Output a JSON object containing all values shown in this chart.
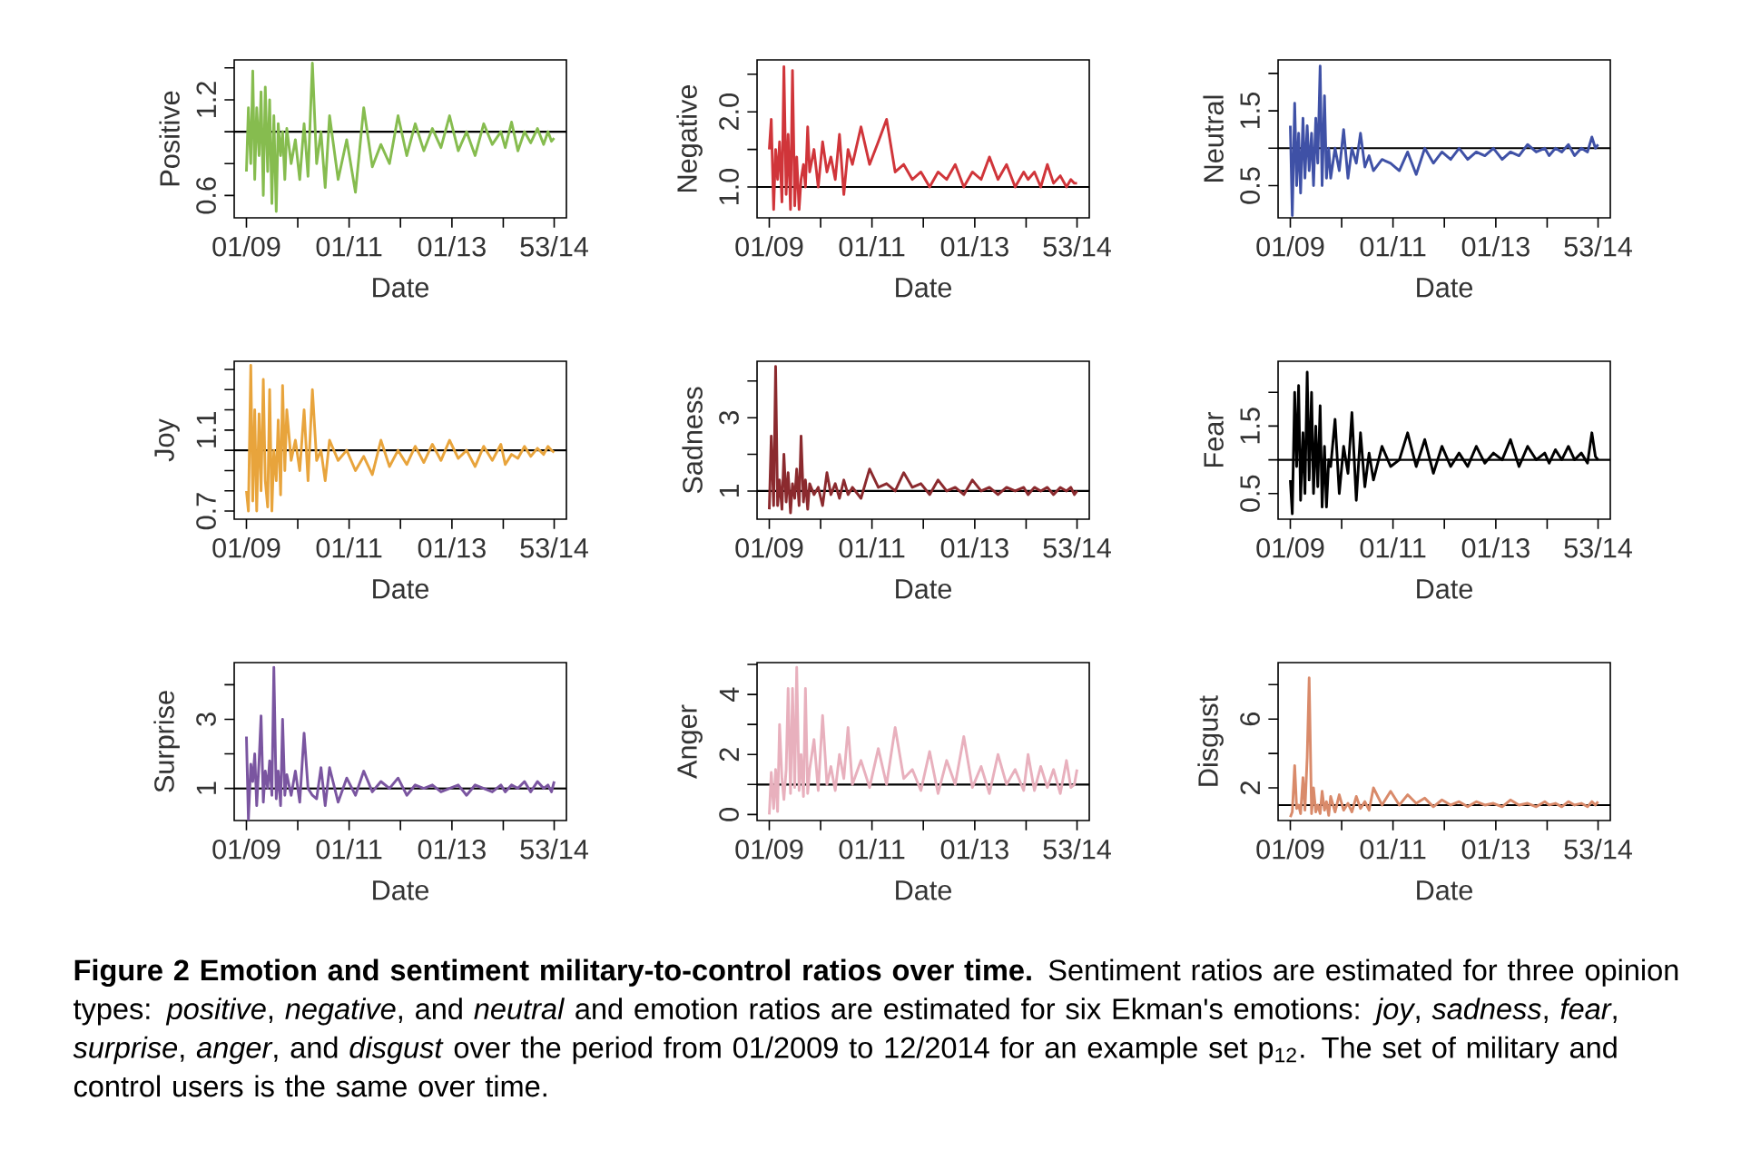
{
  "chart_data": [
    {
      "type": "line",
      "xlabel": "Date",
      "ylabel": "Positive",
      "color": "#86bc4f",
      "xlim": [
        "2008-10-06",
        "2015-03-26"
      ],
      "xticks": [
        {
          "value": "2009-01-01",
          "label": "01/09"
        },
        {
          "value": "2010-01-01",
          "label": null
        },
        {
          "value": "2011-01-01",
          "label": "01/11"
        },
        {
          "value": "2012-01-01",
          "label": null
        },
        {
          "value": "2013-01-01",
          "label": "01/13"
        },
        {
          "value": "2014-01-01",
          "label": null
        },
        {
          "value": "2014-12-29",
          "label": "53/14"
        }
      ],
      "ylim": [
        0.46,
        1.45
      ],
      "yticks": [
        0.6,
        {
          "value": 0.8,
          "label": null
        },
        {
          "value": 1.0,
          "label": null
        },
        1.2,
        {
          "value": 1.4,
          "label": null
        }
      ],
      "ref_lines": [
        {
          "axis": "y",
          "value": 1,
          "color": "#000000"
        }
      ],
      "x": [
        "2009-01-01",
        "2009-01-15",
        "2009-02-01",
        "2009-02-15",
        "2009-03-01",
        "2009-03-15",
        "2009-04-01",
        "2009-04-15",
        "2009-05-01",
        "2009-05-15",
        "2009-06-01",
        "2009-06-15",
        "2009-07-01",
        "2009-07-15",
        "2009-08-01",
        "2009-08-15",
        "2009-09-01",
        "2009-09-15",
        "2009-10-01",
        "2009-10-15",
        "2009-11-15",
        "2009-12-15",
        "2010-01-15",
        "2010-02-15",
        "2010-03-15",
        "2010-04-15",
        "2010-05-15",
        "2010-06-15",
        "2010-07-15",
        "2010-08-15",
        "2010-10-15",
        "2010-12-15",
        "2011-02-15",
        "2011-04-15",
        "2011-06-15",
        "2011-08-15",
        "2011-10-15",
        "2011-12-15",
        "2012-02-15",
        "2012-04-15",
        "2012-06-15",
        "2012-08-15",
        "2012-10-15",
        "2012-12-15",
        "2013-02-15",
        "2013-04-15",
        "2013-06-15",
        "2013-08-15",
        "2013-10-15",
        "2013-12-15",
        "2014-01-15",
        "2014-03-01",
        "2014-04-15",
        "2014-06-01",
        "2014-07-15",
        "2014-09-01",
        "2014-10-15",
        "2014-11-15",
        "2014-12-10",
        "2014-12-29"
      ],
      "values": [
        0.75,
        1.15,
        0.8,
        1.38,
        0.7,
        1.15,
        0.85,
        1.25,
        0.6,
        1.28,
        0.75,
        1.2,
        0.55,
        1.1,
        0.5,
        1.05,
        0.85,
        1.0,
        0.7,
        1.02,
        0.8,
        0.95,
        0.7,
        1.05,
        0.72,
        1.43,
        0.8,
        1.0,
        0.65,
        1.1,
        0.7,
        0.95,
        0.62,
        1.15,
        0.78,
        0.92,
        0.8,
        1.1,
        0.85,
        1.05,
        0.88,
        1.02,
        0.9,
        1.1,
        0.88,
        1.0,
        0.85,
        1.05,
        0.92,
        1.0,
        0.9,
        1.06,
        0.88,
        1.0,
        0.93,
        1.02,
        0.92,
        1.0,
        0.94,
        0.96
      ]
    },
    {
      "type": "line",
      "xlabel": "Date",
      "ylabel": "Negative",
      "color": "#d0353a",
      "xlim": [
        "2008-10-06",
        "2015-03-26"
      ],
      "xticks": [
        {
          "value": "2009-01-01",
          "label": "01/09"
        },
        {
          "value": "2010-01-01",
          "label": null
        },
        {
          "value": "2011-01-01",
          "label": "01/11"
        },
        {
          "value": "2012-01-01",
          "label": null
        },
        {
          "value": "2013-01-01",
          "label": "01/13"
        },
        {
          "value": "2014-01-01",
          "label": null
        },
        {
          "value": "2014-12-29",
          "label": "53/14"
        }
      ],
      "ylim": [
        0.59,
        2.69
      ],
      "yticks": [
        {
          "value": 1.0,
          "label": "1.0"
        },
        {
          "value": 1.5,
          "label": null
        },
        {
          "value": 2.0,
          "label": "2.0"
        },
        {
          "value": 2.5,
          "label": null
        }
      ],
      "ref_lines": [
        {
          "axis": "y",
          "value": 1,
          "color": "#000000"
        }
      ],
      "x": [
        "2009-01-01",
        "2009-01-15",
        "2009-02-01",
        "2009-02-15",
        "2009-03-01",
        "2009-03-15",
        "2009-04-01",
        "2009-04-15",
        "2009-05-01",
        "2009-05-15",
        "2009-06-01",
        "2009-06-15",
        "2009-07-01",
        "2009-07-15",
        "2009-08-01",
        "2009-08-15",
        "2009-09-01",
        "2009-09-15",
        "2009-10-01",
        "2009-10-15",
        "2009-11-15",
        "2009-12-15",
        "2010-01-15",
        "2010-02-15",
        "2010-03-15",
        "2010-04-15",
        "2010-05-15",
        "2010-06-15",
        "2010-07-15",
        "2010-08-15",
        "2010-10-15",
        "2010-12-15",
        "2011-02-15",
        "2011-04-15",
        "2011-06-15",
        "2011-08-15",
        "2011-10-15",
        "2011-12-15",
        "2012-02-15",
        "2012-04-15",
        "2012-06-15",
        "2012-08-15",
        "2012-10-15",
        "2012-12-15",
        "2013-02-15",
        "2013-04-15",
        "2013-06-15",
        "2013-08-15",
        "2013-10-15",
        "2013-12-15",
        "2014-01-15",
        "2014-03-01",
        "2014-04-15",
        "2014-06-01",
        "2014-07-15",
        "2014-09-01",
        "2014-10-15",
        "2014-11-15",
        "2014-12-10",
        "2014-12-29"
      ],
      "values": [
        1.5,
        1.9,
        0.7,
        1.5,
        1.1,
        1.6,
        0.8,
        2.6,
        0.9,
        1.7,
        0.7,
        2.55,
        0.75,
        1.4,
        0.7,
        1.1,
        1.3,
        1.0,
        1.8,
        1.2,
        1.5,
        1.0,
        1.6,
        1.2,
        1.4,
        1.1,
        1.7,
        0.9,
        1.5,
        1.3,
        1.8,
        1.3,
        1.6,
        1.9,
        1.2,
        1.3,
        1.1,
        1.2,
        1.0,
        1.2,
        1.1,
        1.3,
        1.0,
        1.2,
        1.1,
        1.4,
        1.1,
        1.3,
        1.0,
        1.2,
        1.1,
        1.2,
        1.0,
        1.3,
        1.05,
        1.15,
        1.0,
        1.1,
        1.05,
        1.05
      ]
    },
    {
      "type": "line",
      "xlabel": "Date",
      "ylabel": "Neutral",
      "color": "#3f51a6",
      "xlim": [
        "2008-10-06",
        "2015-03-26"
      ],
      "xticks": [
        {
          "value": "2009-01-01",
          "label": "01/09"
        },
        {
          "value": "2010-01-01",
          "label": null
        },
        {
          "value": "2011-01-01",
          "label": "01/11"
        },
        {
          "value": "2012-01-01",
          "label": null
        },
        {
          "value": "2013-01-01",
          "label": "01/13"
        },
        {
          "value": "2014-01-01",
          "label": null
        },
        {
          "value": "2014-12-29",
          "label": "53/14"
        }
      ],
      "ylim": [
        0.07,
        2.18
      ],
      "yticks": [
        0.5,
        {
          "value": 1.0,
          "label": null
        },
        1.5,
        {
          "value": 2.0,
          "label": null
        }
      ],
      "ref_lines": [
        {
          "axis": "y",
          "value": 1,
          "color": "#000000"
        }
      ],
      "x": [
        "2009-01-01",
        "2009-01-15",
        "2009-02-01",
        "2009-02-15",
        "2009-03-01",
        "2009-03-15",
        "2009-04-01",
        "2009-04-15",
        "2009-05-01",
        "2009-05-15",
        "2009-06-01",
        "2009-06-15",
        "2009-07-01",
        "2009-07-15",
        "2009-08-01",
        "2009-08-15",
        "2009-09-01",
        "2009-09-15",
        "2009-10-01",
        "2009-10-15",
        "2009-11-15",
        "2009-12-15",
        "2010-01-15",
        "2010-02-15",
        "2010-03-15",
        "2010-04-15",
        "2010-05-15",
        "2010-06-15",
        "2010-07-15",
        "2010-08-15",
        "2010-10-15",
        "2010-12-15",
        "2011-02-15",
        "2011-04-15",
        "2011-06-15",
        "2011-08-15",
        "2011-10-15",
        "2011-12-15",
        "2012-02-15",
        "2012-04-15",
        "2012-06-15",
        "2012-08-15",
        "2012-10-15",
        "2012-12-15",
        "2013-02-15",
        "2013-04-15",
        "2013-06-15",
        "2013-08-15",
        "2013-10-15",
        "2013-12-15",
        "2014-01-15",
        "2014-03-01",
        "2014-04-15",
        "2014-06-01",
        "2014-07-15",
        "2014-09-01",
        "2014-10-15",
        "2014-11-15",
        "2014-12-10",
        "2014-12-29"
      ],
      "values": [
        1.3,
        0.1,
        1.6,
        0.5,
        1.2,
        0.4,
        1.4,
        0.6,
        1.3,
        0.7,
        1.2,
        0.5,
        1.4,
        0.8,
        2.1,
        0.5,
        1.7,
        0.6,
        1.0,
        0.6,
        1.0,
        0.7,
        1.25,
        0.6,
        1.0,
        0.8,
        1.2,
        0.75,
        0.9,
        0.7,
        0.85,
        0.8,
        0.7,
        0.95,
        0.65,
        1.0,
        0.8,
        0.95,
        0.85,
        1.0,
        0.85,
        0.95,
        0.9,
        1.0,
        0.85,
        0.95,
        0.9,
        1.05,
        0.95,
        1.0,
        0.9,
        1.0,
        0.95,
        1.05,
        0.9,
        1.0,
        0.95,
        1.15,
        1.0,
        1.05
      ]
    },
    {
      "type": "line",
      "xlabel": "Date",
      "ylabel": "Joy",
      "color": "#e8a43c",
      "xlim": [
        "2008-10-06",
        "2015-03-26"
      ],
      "xticks": [
        {
          "value": "2009-01-01",
          "label": "01/09"
        },
        {
          "value": "2010-01-01",
          "label": null
        },
        {
          "value": "2011-01-01",
          "label": "01/11"
        },
        {
          "value": "2012-01-01",
          "label": null
        },
        {
          "value": "2013-01-01",
          "label": "01/13"
        },
        {
          "value": "2014-01-01",
          "label": null
        },
        {
          "value": "2014-12-29",
          "label": "53/14"
        }
      ],
      "ylim": [
        0.66,
        1.44
      ],
      "yticks": [
        0.7,
        {
          "value": 0.8,
          "label": null
        },
        {
          "value": 0.9,
          "label": null
        },
        {
          "value": 1.0,
          "label": null
        },
        1.1,
        {
          "value": 1.2,
          "label": null
        },
        {
          "value": 1.3,
          "label": null
        },
        {
          "value": 1.4,
          "label": null
        }
      ],
      "ref_lines": [
        {
          "axis": "y",
          "value": 1,
          "color": "#000000"
        }
      ],
      "x": [
        "2009-01-01",
        "2009-01-15",
        "2009-02-01",
        "2009-02-15",
        "2009-03-01",
        "2009-03-15",
        "2009-04-01",
        "2009-04-15",
        "2009-05-01",
        "2009-05-15",
        "2009-06-01",
        "2009-06-15",
        "2009-07-01",
        "2009-07-15",
        "2009-08-01",
        "2009-08-15",
        "2009-09-01",
        "2009-09-15",
        "2009-10-01",
        "2009-10-15",
        "2009-11-15",
        "2009-12-15",
        "2010-01-15",
        "2010-02-15",
        "2010-03-15",
        "2010-04-15",
        "2010-05-15",
        "2010-06-15",
        "2010-07-15",
        "2010-08-15",
        "2010-10-15",
        "2010-12-15",
        "2011-02-15",
        "2011-04-15",
        "2011-06-15",
        "2011-08-15",
        "2011-10-15",
        "2011-12-15",
        "2012-02-15",
        "2012-04-15",
        "2012-06-15",
        "2012-08-15",
        "2012-10-15",
        "2012-12-15",
        "2013-02-15",
        "2013-04-15",
        "2013-06-15",
        "2013-08-15",
        "2013-10-15",
        "2013-12-15",
        "2014-01-15",
        "2014-03-01",
        "2014-04-15",
        "2014-06-01",
        "2014-07-15",
        "2014-09-01",
        "2014-10-15",
        "2014-11-15",
        "2014-12-10",
        "2014-12-29"
      ],
      "values": [
        0.8,
        0.7,
        1.42,
        0.75,
        1.2,
        0.7,
        1.18,
        0.8,
        1.35,
        0.85,
        0.72,
        1.3,
        0.7,
        1.0,
        0.85,
        1.15,
        0.78,
        1.32,
        0.9,
        1.2,
        0.95,
        1.05,
        0.9,
        1.2,
        0.85,
        1.3,
        0.95,
        1.0,
        0.85,
        1.05,
        0.95,
        1.0,
        0.9,
        0.97,
        0.88,
        1.05,
        0.92,
        1.0,
        0.93,
        1.02,
        0.94,
        1.03,
        0.95,
        1.05,
        0.96,
        1.0,
        0.92,
        1.02,
        0.95,
        1.03,
        0.93,
        0.98,
        0.96,
        1.02,
        0.97,
        1.01,
        0.98,
        1.02,
        1.0,
        0.99
      ]
    },
    {
      "type": "line",
      "xlabel": "Date",
      "ylabel": "Sadness",
      "color": "#8b2a2e",
      "xlim": [
        "2008-10-06",
        "2015-03-26"
      ],
      "xticks": [
        {
          "value": "2009-01-01",
          "label": "01/09"
        },
        {
          "value": "2010-01-01",
          "label": null
        },
        {
          "value": "2011-01-01",
          "label": "01/11"
        },
        {
          "value": "2012-01-01",
          "label": null
        },
        {
          "value": "2013-01-01",
          "label": "01/13"
        },
        {
          "value": "2014-01-01",
          "label": null
        },
        {
          "value": "2014-12-29",
          "label": "53/14"
        }
      ],
      "ylim": [
        0.23,
        4.54
      ],
      "yticks": [
        1,
        {
          "value": 2,
          "label": null
        },
        3,
        {
          "value": 4,
          "label": null
        }
      ],
      "ref_lines": [
        {
          "axis": "y",
          "value": 1,
          "color": "#000000"
        }
      ],
      "x": [
        "2009-01-01",
        "2009-01-15",
        "2009-02-01",
        "2009-02-15",
        "2009-03-01",
        "2009-03-15",
        "2009-04-01",
        "2009-04-15",
        "2009-05-01",
        "2009-05-15",
        "2009-06-01",
        "2009-06-15",
        "2009-07-01",
        "2009-07-15",
        "2009-08-01",
        "2009-08-15",
        "2009-09-01",
        "2009-09-15",
        "2009-10-01",
        "2009-10-15",
        "2009-11-15",
        "2009-12-15",
        "2010-01-15",
        "2010-02-15",
        "2010-03-15",
        "2010-04-15",
        "2010-05-15",
        "2010-06-15",
        "2010-07-15",
        "2010-08-15",
        "2010-10-15",
        "2010-12-15",
        "2011-02-15",
        "2011-04-15",
        "2011-06-15",
        "2011-08-15",
        "2011-10-15",
        "2011-12-15",
        "2012-02-15",
        "2012-04-15",
        "2012-06-15",
        "2012-08-15",
        "2012-10-15",
        "2012-12-15",
        "2013-02-15",
        "2013-04-15",
        "2013-06-15",
        "2013-08-15",
        "2013-10-15",
        "2013-12-15",
        "2014-01-15",
        "2014-03-01",
        "2014-04-15",
        "2014-06-01",
        "2014-07-15",
        "2014-09-01",
        "2014-10-15",
        "2014-11-15",
        "2014-12-10",
        "2014-12-29"
      ],
      "values": [
        0.5,
        2.5,
        0.6,
        4.4,
        0.6,
        1.3,
        0.5,
        2.0,
        0.7,
        1.5,
        0.4,
        1.2,
        0.8,
        1.6,
        0.6,
        2.5,
        0.7,
        1.3,
        0.5,
        1.2,
        0.9,
        1.1,
        0.6,
        1.5,
        0.9,
        1.2,
        0.8,
        1.3,
        0.9,
        1.1,
        0.8,
        1.6,
        1.1,
        1.2,
        1.0,
        1.5,
        1.1,
        1.2,
        0.9,
        1.3,
        1.0,
        1.1,
        0.9,
        1.3,
        1.0,
        1.1,
        0.9,
        1.1,
        1.0,
        1.1,
        0.9,
        1.1,
        1.0,
        1.1,
        0.9,
        1.1,
        1.0,
        1.1,
        0.9,
        1.0
      ]
    },
    {
      "type": "line",
      "xlabel": "Date",
      "ylabel": "Fear",
      "color": "#000000",
      "xlim": [
        "2008-10-06",
        "2015-03-26"
      ],
      "xticks": [
        {
          "value": "2009-01-01",
          "label": "01/09"
        },
        {
          "value": "2010-01-01",
          "label": null
        },
        {
          "value": "2011-01-01",
          "label": "01/11"
        },
        {
          "value": "2012-01-01",
          "label": null
        },
        {
          "value": "2013-01-01",
          "label": "01/13"
        },
        {
          "value": "2014-01-01",
          "label": null
        },
        {
          "value": "2014-12-29",
          "label": "53/14"
        }
      ],
      "ylim": [
        0.12,
        2.46
      ],
      "yticks": [
        0.5,
        {
          "value": 1.0,
          "label": null
        },
        1.5,
        {
          "value": 2.0,
          "label": null
        }
      ],
      "ref_lines": [
        {
          "axis": "y",
          "value": 1,
          "color": "#000000"
        }
      ],
      "x": [
        "2009-01-01",
        "2009-01-15",
        "2009-02-01",
        "2009-02-15",
        "2009-03-01",
        "2009-03-15",
        "2009-04-01",
        "2009-04-15",
        "2009-05-01",
        "2009-05-15",
        "2009-06-01",
        "2009-06-15",
        "2009-07-01",
        "2009-07-15",
        "2009-08-01",
        "2009-08-15",
        "2009-09-01",
        "2009-09-15",
        "2009-10-01",
        "2009-10-15",
        "2009-11-15",
        "2009-12-15",
        "2010-01-15",
        "2010-02-15",
        "2010-03-15",
        "2010-04-15",
        "2010-05-15",
        "2010-06-15",
        "2010-07-15",
        "2010-08-15",
        "2010-10-15",
        "2010-12-15",
        "2011-02-15",
        "2011-04-15",
        "2011-06-15",
        "2011-08-15",
        "2011-10-15",
        "2011-12-15",
        "2012-02-15",
        "2012-04-15",
        "2012-06-15",
        "2012-08-15",
        "2012-10-15",
        "2012-12-15",
        "2013-02-15",
        "2013-04-15",
        "2013-06-15",
        "2013-08-15",
        "2013-10-15",
        "2013-12-15",
        "2014-01-15",
        "2014-03-01",
        "2014-04-15",
        "2014-06-01",
        "2014-07-15",
        "2014-09-01",
        "2014-10-15",
        "2014-11-15",
        "2014-12-10",
        "2014-12-29"
      ],
      "values": [
        0.7,
        0.2,
        2.0,
        0.9,
        2.1,
        0.4,
        1.4,
        0.5,
        2.3,
        0.7,
        2.0,
        0.5,
        1.5,
        0.6,
        1.8,
        0.3,
        1.2,
        0.3,
        1.0,
        0.9,
        1.6,
        0.5,
        1.2,
        0.8,
        1.7,
        0.4,
        1.4,
        0.6,
        1.1,
        0.7,
        1.2,
        0.9,
        1.0,
        1.4,
        0.9,
        1.3,
        0.8,
        1.2,
        0.9,
        1.1,
        0.9,
        1.2,
        0.95,
        1.1,
        1.0,
        1.3,
        0.9,
        1.2,
        1.0,
        1.1,
        0.95,
        1.15,
        1.0,
        1.2,
        1.0,
        1.1,
        0.95,
        1.4,
        1.05,
        1.0
      ]
    },
    {
      "type": "line",
      "xlabel": "Date",
      "ylabel": "Surprise",
      "color": "#7a55a0",
      "xlim": [
        "2008-10-06",
        "2015-03-26"
      ],
      "xticks": [
        {
          "value": "2009-01-01",
          "label": "01/09"
        },
        {
          "value": "2010-01-01",
          "label": null
        },
        {
          "value": "2011-01-01",
          "label": "01/11"
        },
        {
          "value": "2012-01-01",
          "label": null
        },
        {
          "value": "2013-01-01",
          "label": "01/13"
        },
        {
          "value": "2014-01-01",
          "label": null
        },
        {
          "value": "2014-12-29",
          "label": "53/14"
        }
      ],
      "ylim": [
        0.07,
        4.64
      ],
      "yticks": [
        1,
        {
          "value": 2,
          "label": null
        },
        3,
        {
          "value": 4,
          "label": null
        }
      ],
      "ref_lines": [
        {
          "axis": "y",
          "value": 1,
          "color": "#000000"
        }
      ],
      "x": [
        "2009-01-01",
        "2009-01-15",
        "2009-02-01",
        "2009-02-15",
        "2009-03-01",
        "2009-03-15",
        "2009-04-01",
        "2009-04-15",
        "2009-05-01",
        "2009-05-15",
        "2009-06-01",
        "2009-06-15",
        "2009-07-01",
        "2009-07-15",
        "2009-08-01",
        "2009-08-15",
        "2009-09-01",
        "2009-09-15",
        "2009-10-01",
        "2009-10-15",
        "2009-11-15",
        "2009-12-15",
        "2010-01-15",
        "2010-02-15",
        "2010-03-15",
        "2010-04-15",
        "2010-05-15",
        "2010-06-15",
        "2010-07-15",
        "2010-08-15",
        "2010-10-15",
        "2010-12-15",
        "2011-02-15",
        "2011-04-15",
        "2011-06-15",
        "2011-08-15",
        "2011-10-15",
        "2011-12-15",
        "2012-02-15",
        "2012-04-15",
        "2012-06-15",
        "2012-08-15",
        "2012-10-15",
        "2012-12-15",
        "2013-02-15",
        "2013-04-15",
        "2013-06-15",
        "2013-08-15",
        "2013-10-15",
        "2013-12-15",
        "2014-01-15",
        "2014-03-01",
        "2014-04-15",
        "2014-06-01",
        "2014-07-15",
        "2014-09-01",
        "2014-10-15",
        "2014-11-15",
        "2014-12-10",
        "2014-12-29"
      ],
      "values": [
        2.5,
        0.1,
        1.7,
        1.2,
        2.0,
        0.5,
        1.8,
        3.1,
        0.6,
        1.5,
        1.0,
        1.8,
        0.8,
        4.5,
        0.7,
        1.5,
        0.5,
        3.0,
        0.8,
        1.4,
        0.8,
        1.5,
        0.6,
        2.6,
        1.0,
        0.8,
        0.7,
        1.6,
        0.5,
        1.6,
        0.6,
        1.3,
        0.8,
        1.5,
        0.9,
        1.2,
        1.0,
        1.3,
        0.8,
        1.1,
        1.0,
        1.1,
        0.9,
        1.0,
        1.1,
        0.8,
        1.1,
        1.0,
        0.9,
        1.1,
        0.9,
        1.1,
        1.0,
        1.2,
        0.9,
        1.2,
        1.0,
        1.1,
        0.9,
        1.2
      ]
    },
    {
      "type": "line",
      "xlabel": "Date",
      "ylabel": "Anger",
      "color": "#e8b0bd",
      "xlim": [
        "2008-10-06",
        "2015-03-26"
      ],
      "xticks": [
        {
          "value": "2009-01-01",
          "label": "01/09"
        },
        {
          "value": "2010-01-01",
          "label": null
        },
        {
          "value": "2011-01-01",
          "label": "01/11"
        },
        {
          "value": "2012-01-01",
          "label": null
        },
        {
          "value": "2013-01-01",
          "label": "01/13"
        },
        {
          "value": "2014-01-01",
          "label": null
        },
        {
          "value": "2014-12-29",
          "label": "53/14"
        }
      ],
      "ylim": [
        -0.2,
        5.06
      ],
      "yticks": [
        0,
        {
          "value": 1,
          "label": null
        },
        2,
        {
          "value": 3,
          "label": null
        },
        4,
        {
          "value": 5,
          "label": null
        }
      ],
      "ref_lines": [
        {
          "axis": "y",
          "value": 1,
          "color": "#000000"
        }
      ],
      "x": [
        "2009-01-01",
        "2009-01-15",
        "2009-02-01",
        "2009-02-15",
        "2009-03-01",
        "2009-03-15",
        "2009-04-01",
        "2009-04-15",
        "2009-05-01",
        "2009-05-15",
        "2009-06-01",
        "2009-06-15",
        "2009-07-01",
        "2009-07-15",
        "2009-08-01",
        "2009-08-15",
        "2009-09-01",
        "2009-09-15",
        "2009-10-01",
        "2009-10-15",
        "2009-11-15",
        "2009-12-15",
        "2010-01-15",
        "2010-02-15",
        "2010-03-15",
        "2010-04-15",
        "2010-05-15",
        "2010-06-15",
        "2010-07-15",
        "2010-08-15",
        "2010-10-15",
        "2010-12-15",
        "2011-02-15",
        "2011-04-15",
        "2011-06-15",
        "2011-08-15",
        "2011-10-15",
        "2011-12-15",
        "2012-02-15",
        "2012-04-15",
        "2012-06-15",
        "2012-08-15",
        "2012-10-15",
        "2012-12-15",
        "2013-02-15",
        "2013-04-15",
        "2013-06-15",
        "2013-08-15",
        "2013-10-15",
        "2013-12-15",
        "2014-01-15",
        "2014-03-01",
        "2014-04-15",
        "2014-06-01",
        "2014-07-15",
        "2014-09-01",
        "2014-10-15",
        "2014-11-15",
        "2014-12-10",
        "2014-12-29"
      ],
      "values": [
        0.0,
        1.4,
        0.2,
        1.5,
        0.1,
        3.0,
        1.2,
        0.5,
        1.5,
        4.2,
        0.7,
        4.2,
        0.9,
        4.9,
        0.8,
        2.0,
        0.6,
        4.2,
        0.7,
        1.5,
        2.5,
        0.8,
        3.3,
        1.0,
        1.6,
        0.8,
        2.0,
        1.2,
        2.9,
        1.0,
        1.8,
        0.9,
        2.2,
        1.0,
        2.9,
        1.2,
        1.5,
        0.8,
        2.1,
        0.7,
        1.8,
        1.0,
        2.6,
        0.9,
        1.6,
        0.7,
        2.0,
        1.0,
        1.5,
        0.8,
        2.0,
        0.8,
        1.6,
        0.9,
        1.5,
        0.7,
        1.8,
        0.9,
        1.0,
        1.5
      ]
    },
    {
      "type": "line",
      "xlabel": "Date",
      "ylabel": "Disgust",
      "color": "#d98a6a",
      "xlim": [
        "2008-10-06",
        "2015-03-26"
      ],
      "xticks": [
        {
          "value": "2009-01-01",
          "label": "01/09"
        },
        {
          "value": "2010-01-01",
          "label": null
        },
        {
          "value": "2011-01-01",
          "label": "01/11"
        },
        {
          "value": "2012-01-01",
          "label": null
        },
        {
          "value": "2013-01-01",
          "label": "01/13"
        },
        {
          "value": "2014-01-01",
          "label": null
        },
        {
          "value": "2014-12-29",
          "label": "53/14"
        }
      ],
      "ylim": [
        0.1,
        9.28
      ],
      "yticks": [
        2,
        {
          "value": 4,
          "label": null
        },
        6,
        {
          "value": 8,
          "label": null
        }
      ],
      "ref_lines": [
        {
          "axis": "y",
          "value": 1,
          "color": "#000000"
        }
      ],
      "x": [
        "2009-01-01",
        "2009-01-15",
        "2009-02-01",
        "2009-02-15",
        "2009-03-01",
        "2009-03-15",
        "2009-04-01",
        "2009-04-15",
        "2009-05-01",
        "2009-05-15",
        "2009-06-01",
        "2009-06-15",
        "2009-07-01",
        "2009-07-15",
        "2009-08-01",
        "2009-08-15",
        "2009-09-01",
        "2009-09-15",
        "2009-10-01",
        "2009-10-15",
        "2009-11-15",
        "2009-12-15",
        "2010-01-15",
        "2010-02-15",
        "2010-03-15",
        "2010-04-15",
        "2010-05-15",
        "2010-06-15",
        "2010-07-15",
        "2010-08-15",
        "2010-10-15",
        "2010-12-15",
        "2011-02-15",
        "2011-04-15",
        "2011-06-15",
        "2011-08-15",
        "2011-10-15",
        "2011-12-15",
        "2012-02-15",
        "2012-04-15",
        "2012-06-15",
        "2012-08-15",
        "2012-10-15",
        "2012-12-15",
        "2013-02-15",
        "2013-04-15",
        "2013-06-15",
        "2013-08-15",
        "2013-10-15",
        "2013-12-15",
        "2014-01-15",
        "2014-03-01",
        "2014-04-15",
        "2014-06-01",
        "2014-07-15",
        "2014-09-01",
        "2014-10-15",
        "2014-11-15",
        "2014-12-10",
        "2014-12-29"
      ],
      "values": [
        0.3,
        0.6,
        3.3,
        0.8,
        1.0,
        0.5,
        2.6,
        0.7,
        3.8,
        8.4,
        0.5,
        2.0,
        0.6,
        1.0,
        0.5,
        1.8,
        0.7,
        1.2,
        0.4,
        1.5,
        0.6,
        1.6,
        0.7,
        1.1,
        0.6,
        1.5,
        0.8,
        1.2,
        0.7,
        2.0,
        1.0,
        1.8,
        1.0,
        1.6,
        1.1,
        1.4,
        0.9,
        1.3,
        1.0,
        1.2,
        0.9,
        1.2,
        1.0,
        1.1,
        0.9,
        1.3,
        1.0,
        1.1,
        0.9,
        1.2,
        1.0,
        1.1,
        0.9,
        1.2,
        1.0,
        1.1,
        0.9,
        1.2,
        1.0,
        1.2
      ],
      "annotations": [
        "**Figure 2  Emotion and sentiment military-to-control ratios over time.** Sentiment ratios are estimated for three opinion types: *positive*, *negative*, and *neutral* and emotion ratios are estimated for six Ekman's emotions: *joy*, *sadness*, *fear*, *surprise*, *anger*, and *disgust* over the period from 01/2009 to 12/2014 for an example set p$_{12}$. The set of military and control users is the same over time."
      ]
    }
  ]
}
